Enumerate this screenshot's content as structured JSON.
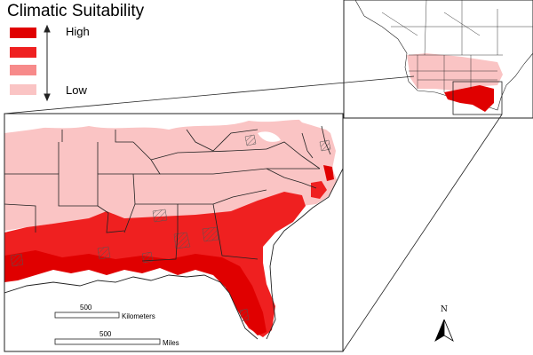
{
  "legend": {
    "title": "Climatic Suitability",
    "high_label": "High",
    "low_label": "Low",
    "classes": [
      {
        "name": "class-1",
        "color": "#e00000"
      },
      {
        "name": "class-2",
        "color": "#ef2020"
      },
      {
        "name": "class-3",
        "color": "#f78a8a"
      },
      {
        "name": "class-4",
        "color": "#fac4c4"
      }
    ]
  },
  "scale_bars": {
    "kilometers": {
      "value": "500",
      "unit": "Kilometers"
    },
    "miles": {
      "value": "500",
      "unit": "Miles"
    }
  },
  "north_arrow": {
    "label": "N"
  },
  "colors": {
    "high": "#e00000",
    "medium_high": "#ef2020",
    "medium_low": "#f78a8a",
    "low": "#fac4c4",
    "border": "#222222",
    "water": "#ffffff"
  }
}
